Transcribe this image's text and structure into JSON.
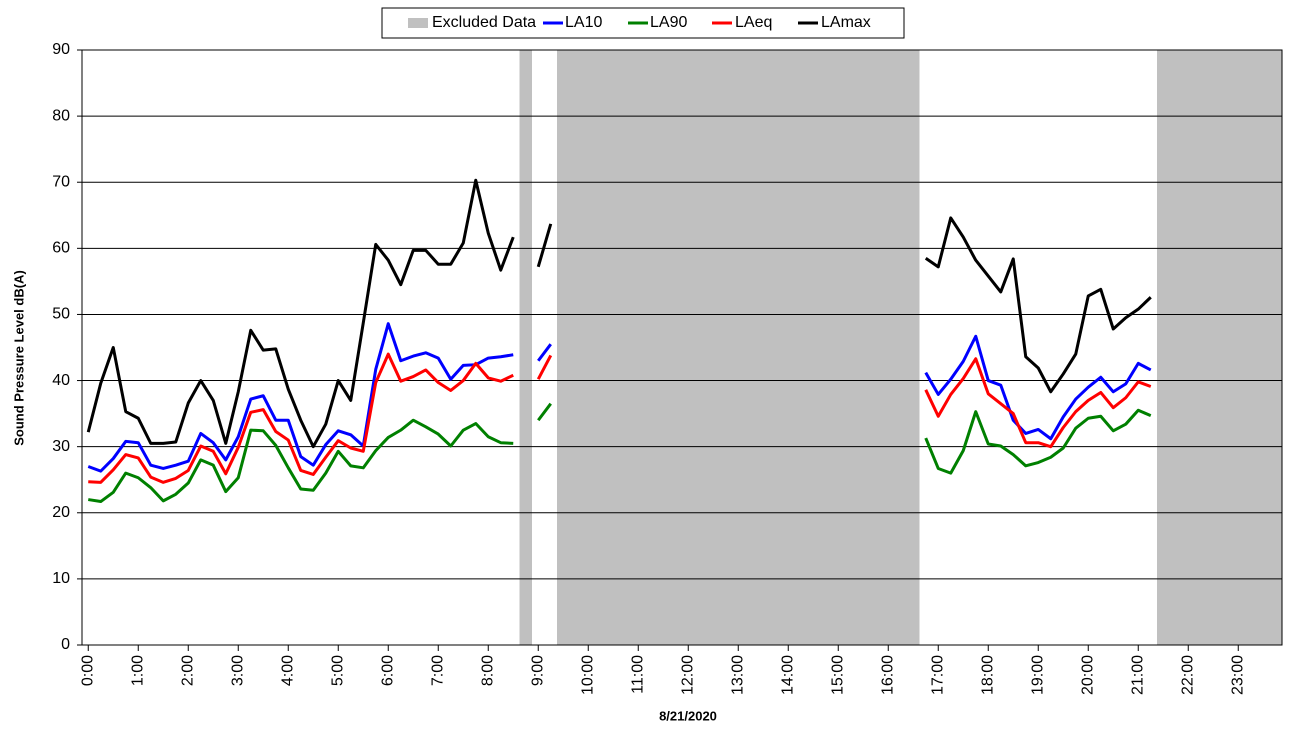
{
  "chart_data": {
    "type": "line",
    "x_label": "8/21/2020",
    "y_label": "Sound Pressure Level dB(A)",
    "xlim": [
      -0.125,
      23.875
    ],
    "ylim": [
      0,
      90
    ],
    "yticks": [
      0,
      10,
      20,
      30,
      40,
      50,
      60,
      70,
      80,
      90
    ],
    "xticks": [
      {
        "value": 0,
        "label": "0:00"
      },
      {
        "value": 1,
        "label": "1:00"
      },
      {
        "value": 2,
        "label": "2:00"
      },
      {
        "value": 3,
        "label": "3:00"
      },
      {
        "value": 4,
        "label": "4:00"
      },
      {
        "value": 5,
        "label": "5:00"
      },
      {
        "value": 6,
        "label": "6:00"
      },
      {
        "value": 7,
        "label": "7:00"
      },
      {
        "value": 8,
        "label": "8:00"
      },
      {
        "value": 9,
        "label": "9:00"
      },
      {
        "value": 10,
        "label": "10:00"
      },
      {
        "value": 11,
        "label": "11:00"
      },
      {
        "value": 12,
        "label": "12:00"
      },
      {
        "value": 13,
        "label": "13:00"
      },
      {
        "value": 14,
        "label": "14:00"
      },
      {
        "value": 15,
        "label": "15:00"
      },
      {
        "value": 16,
        "label": "16:00"
      },
      {
        "value": 17,
        "label": "17:00"
      },
      {
        "value": 18,
        "label": "18:00"
      },
      {
        "value": 19,
        "label": "19:00"
      },
      {
        "value": 20,
        "label": "20:00"
      },
      {
        "value": 21,
        "label": "21:00"
      },
      {
        "value": 22,
        "label": "22:00"
      },
      {
        "value": 23,
        "label": "23:00"
      }
    ],
    "grid": true,
    "legend": "top",
    "excluded": {
      "name": "Excluded Data",
      "color": "#c0c0c0",
      "ranges": [
        [
          8.625,
          8.875
        ],
        [
          9.375,
          16.625
        ],
        [
          21.375,
          23.875
        ]
      ]
    },
    "x": [
      0,
      0.25,
      0.5,
      0.75,
      1,
      1.25,
      1.5,
      1.75,
      2,
      2.25,
      2.5,
      2.75,
      3,
      3.25,
      3.5,
      3.75,
      4,
      4.25,
      4.5,
      4.75,
      5,
      5.25,
      5.5,
      5.75,
      6,
      6.25,
      6.5,
      6.75,
      7,
      7.25,
      7.5,
      7.75,
      8,
      8.25,
      8.5,
      8.75,
      9,
      9.25,
      9.5,
      16.75,
      17,
      17.25,
      17.5,
      17.75,
      18,
      18.25,
      18.5,
      18.75,
      19,
      19.25,
      19.5,
      19.75,
      20,
      20.25,
      20.5,
      20.75,
      21,
      21.25
    ],
    "series": [
      {
        "name": "LA10",
        "color": "#0000ff",
        "values": [
          27,
          26.3,
          28.2,
          30.8,
          30.6,
          27.2,
          26.7,
          27.2,
          27.8,
          32,
          30.6,
          28,
          31.5,
          37.2,
          37.7,
          34,
          34,
          28.5,
          27.2,
          30.3,
          32.4,
          31.8,
          30.1,
          41.7,
          48.6,
          43,
          43.7,
          44.2,
          43.4,
          40.2,
          42.3,
          42.4,
          43.4,
          43.6,
          43.9,
          null,
          43,
          45.5,
          null,
          41.2,
          37.9,
          40.2,
          42.9,
          46.7,
          40,
          39.3,
          34,
          32,
          32.6,
          31.2,
          34.5,
          37.2,
          39,
          40.5,
          38.3,
          39.5,
          42.6,
          41.6
        ]
      },
      {
        "name": "LA90",
        "color": "#008000",
        "values": [
          22,
          21.7,
          23.1,
          26,
          25.3,
          23.8,
          21.8,
          22.8,
          24.5,
          28,
          27.2,
          23.2,
          25.3,
          32.5,
          32.4,
          30.2,
          26.8,
          23.6,
          23.4,
          26,
          29.3,
          27.1,
          26.8,
          29.4,
          31.4,
          32.5,
          34,
          33,
          31.9,
          30.1,
          32.5,
          33.5,
          31.5,
          30.6,
          30.5,
          null,
          34,
          36.5,
          null,
          31.3,
          26.7,
          26,
          29.4,
          35.3,
          30.4,
          30.1,
          28.8,
          27.1,
          27.6,
          28.4,
          29.8,
          32.8,
          34.3,
          34.6,
          32.4,
          33.4,
          35.5,
          34.7
        ]
      },
      {
        "name": "LAeq",
        "color": "#ff0000",
        "values": [
          24.7,
          24.6,
          26.5,
          28.8,
          28.3,
          25.4,
          24.6,
          25.2,
          26.4,
          30.1,
          29.3,
          25.9,
          29.9,
          35.2,
          35.6,
          32.3,
          31,
          26.4,
          25.8,
          28.4,
          30.9,
          29.8,
          29.3,
          39.7,
          44,
          39.9,
          40.6,
          41.6,
          39.7,
          38.5,
          40,
          42.6,
          40.4,
          39.9,
          40.8,
          null,
          40.2,
          43.8,
          null,
          38.6,
          34.6,
          37.9,
          40.3,
          43.3,
          38,
          36.5,
          35,
          30.6,
          30.6,
          30,
          32.9,
          35.3,
          37,
          38.2,
          35.9,
          37.4,
          39.8,
          39.1
        ]
      },
      {
        "name": "LAmax",
        "color": "#000000",
        "values": [
          32.2,
          39.6,
          45,
          35.3,
          34.3,
          30.5,
          30.5,
          30.7,
          36.6,
          40,
          37,
          30.5,
          38.3,
          47.6,
          44.6,
          44.8,
          38.7,
          34,
          30,
          33.4,
          40,
          37,
          48.7,
          60.6,
          58.2,
          54.5,
          59.7,
          59.7,
          57.6,
          57.6,
          60.8,
          70.3,
          62.3,
          56.7,
          61.7,
          null,
          57.2,
          63.7,
          null,
          58.5,
          57.2,
          64.6,
          61.7,
          58.2,
          55.8,
          53.4,
          58.4,
          43.6,
          41.9,
          38.3,
          41,
          44,
          52.8,
          53.8,
          47.8,
          49.5,
          50.8,
          52.6
        ]
      }
    ]
  }
}
